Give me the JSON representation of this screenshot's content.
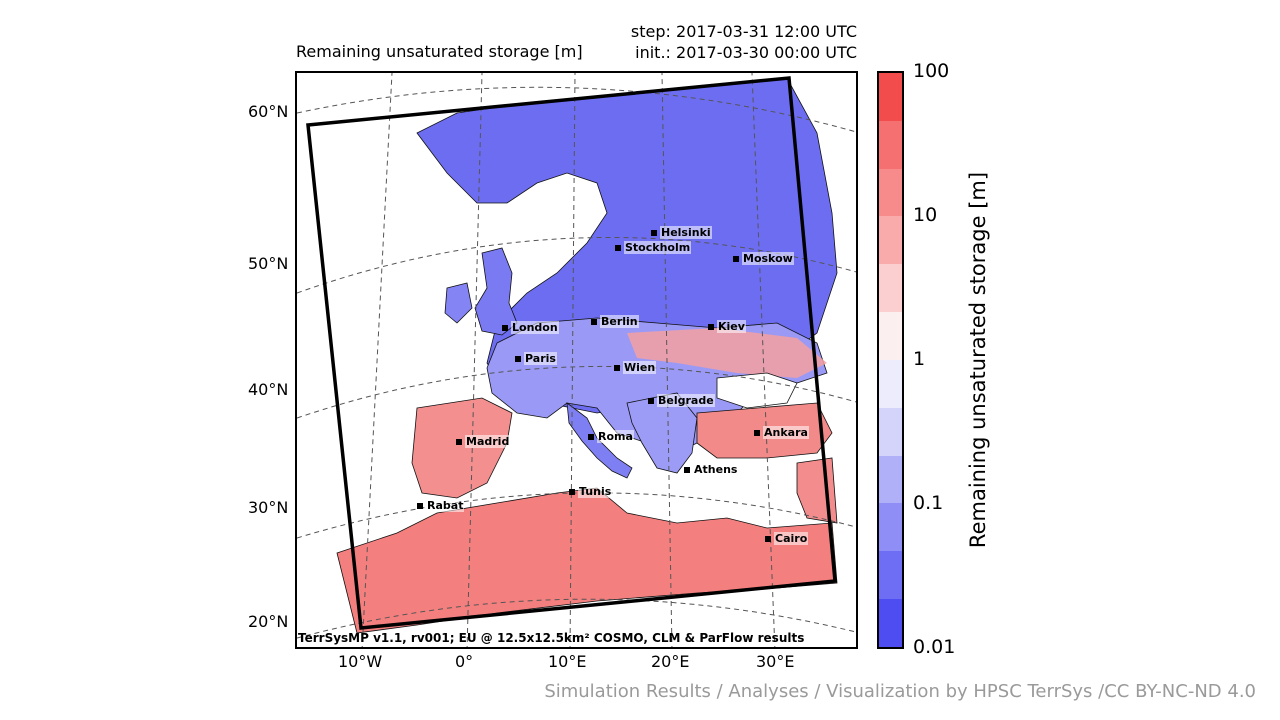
{
  "header": {
    "title": "Remaining unsaturated storage [m]",
    "step": "step: 2017-03-31 12:00 UTC",
    "init": "init.: 2017-03-30 00:00 UTC"
  },
  "axes": {
    "lat_labels": [
      "60°N",
      "50°N",
      "40°N",
      "30°N",
      "20°N"
    ],
    "lon_labels": [
      "10°W",
      "0°",
      "10°E",
      "20°E",
      "30°E"
    ]
  },
  "colorbar": {
    "label": "Remaining unsaturated storage [m]",
    "ticks": [
      "100",
      "10",
      "1",
      "0.1",
      "0.01"
    ],
    "colors": [
      "#f24c4c",
      "#f57070",
      "#f78a8a",
      "#f9abab",
      "#fbcfcf",
      "#fcefef",
      "#ececfc",
      "#d4d4fa",
      "#b0b0f8",
      "#8e8ef6",
      "#6e6ef4",
      "#4d4df2"
    ]
  },
  "cities": [
    "Helsinki",
    "Stockholm",
    "Moskow",
    "London",
    "Berlin",
    "Kiev",
    "Paris",
    "Wien",
    "Belgrade",
    "Madrid",
    "Roma",
    "Ankara",
    "Athens",
    "Tunis",
    "Rabat",
    "Cairo"
  ],
  "footer": "TerrSysMP v1.1, rv001; EU @ 12.5x12.5km² COSMO, CLM & ParFlow results",
  "credits": "Simulation Results / Analyses / Visualization by HPSC TerrSys /CC BY-NC-ND 4.0"
}
